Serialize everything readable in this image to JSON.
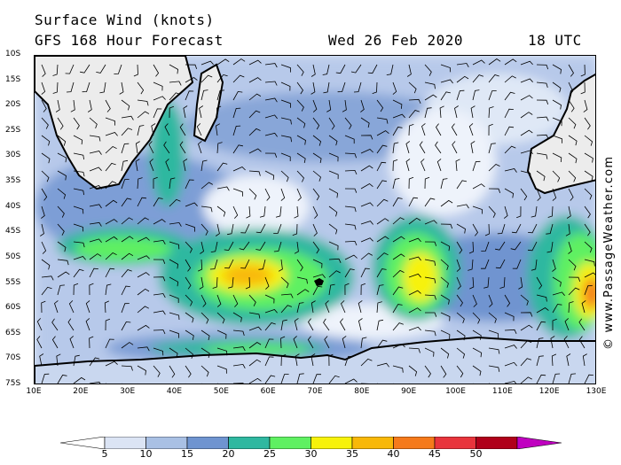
{
  "header": {
    "title": "Surface Wind (knots)",
    "subtitle": "GFS 168 Hour Forecast",
    "date": "Wed 26 Feb 2020",
    "time": "18 UTC"
  },
  "credit": "© www.PassageWeather.com",
  "map": {
    "lat_labels": [
      "10S",
      "15S",
      "20S",
      "25S",
      "30S",
      "35S",
      "40S",
      "45S",
      "50S",
      "55S",
      "60S",
      "65S",
      "70S",
      "75S"
    ],
    "lon_labels": [
      "10E",
      "20E",
      "30E",
      "40E",
      "50E",
      "60E",
      "70E",
      "80E",
      "90E",
      "100E",
      "110E",
      "120E",
      "130E"
    ],
    "lon_range": [
      10,
      130
    ],
    "lat_range": [
      -10,
      -75
    ],
    "regions": [
      "Africa",
      "Madagascar",
      "Australia",
      "Antarctica",
      "Kerguelen Islands"
    ]
  },
  "legend": {
    "colors": [
      "#ffffff",
      "#dbe4f4",
      "#a9c0e4",
      "#6f94d0",
      "#2fb8a0",
      "#5ff062",
      "#f7f20a",
      "#f8b808",
      "#f57a1b",
      "#e8343c",
      "#b0001a",
      "#c000c0"
    ],
    "labels": [
      "5",
      "10",
      "15",
      "20",
      "25",
      "30",
      "35",
      "40",
      "45",
      "50"
    ],
    "unit": "knots"
  }
}
